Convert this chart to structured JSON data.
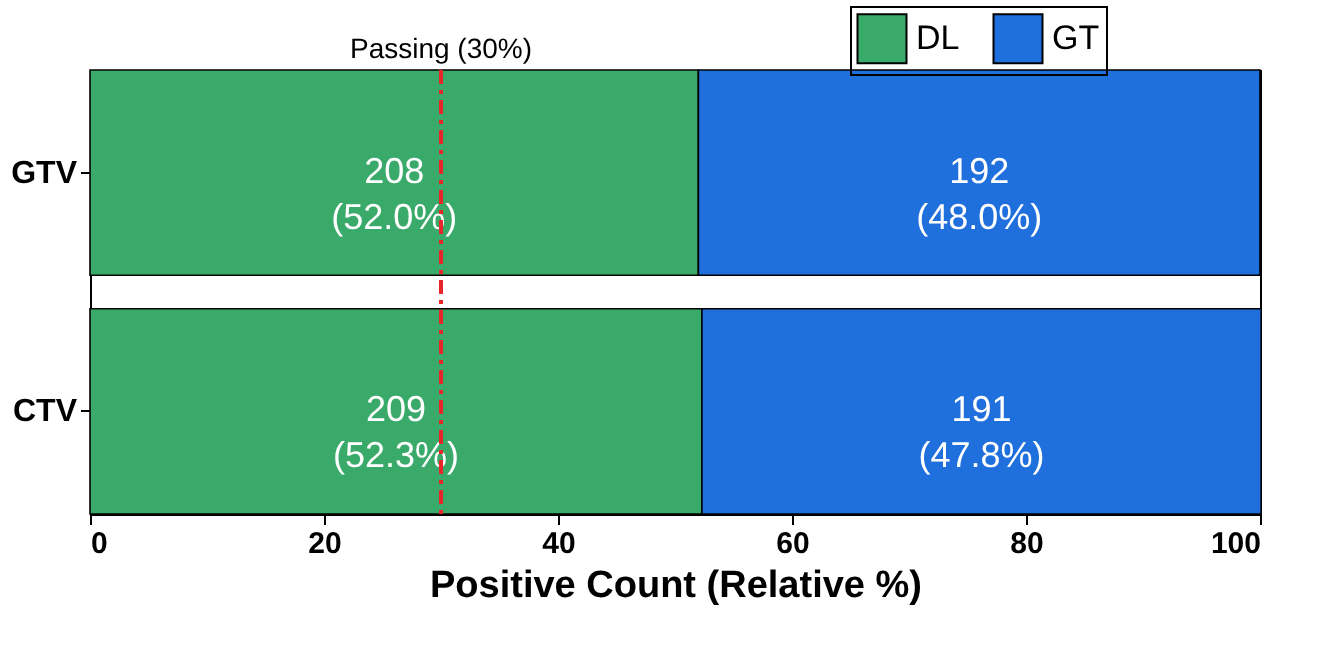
{
  "chart_data": {
    "type": "bar",
    "orientation": "horizontal",
    "stacked": true,
    "categories": [
      "GTV",
      "CTV"
    ],
    "series": [
      {
        "name": "DL",
        "color": "#3aaa6a",
        "values": [
          52.0,
          52.3
        ],
        "value_labels": [
          "208\n(52.0%)",
          "209\n(52.3%)"
        ]
      },
      {
        "name": "GT",
        "color": "#1f6fdc",
        "values": [
          48.0,
          47.8
        ],
        "value_labels": [
          "192\n(48.0%)",
          "191\n(47.8%)"
        ]
      }
    ],
    "xlim": [
      0,
      100
    ],
    "xticks": [
      0,
      20,
      40,
      60,
      80,
      100
    ],
    "xlabel": "Positive Count (Relative %)",
    "ref_lines": [
      {
        "axis": "x",
        "value": 30,
        "label": "Passing (30%)",
        "color": "#e8262a",
        "line_style": "dashdot"
      }
    ],
    "grid": false,
    "legend": "top right"
  }
}
